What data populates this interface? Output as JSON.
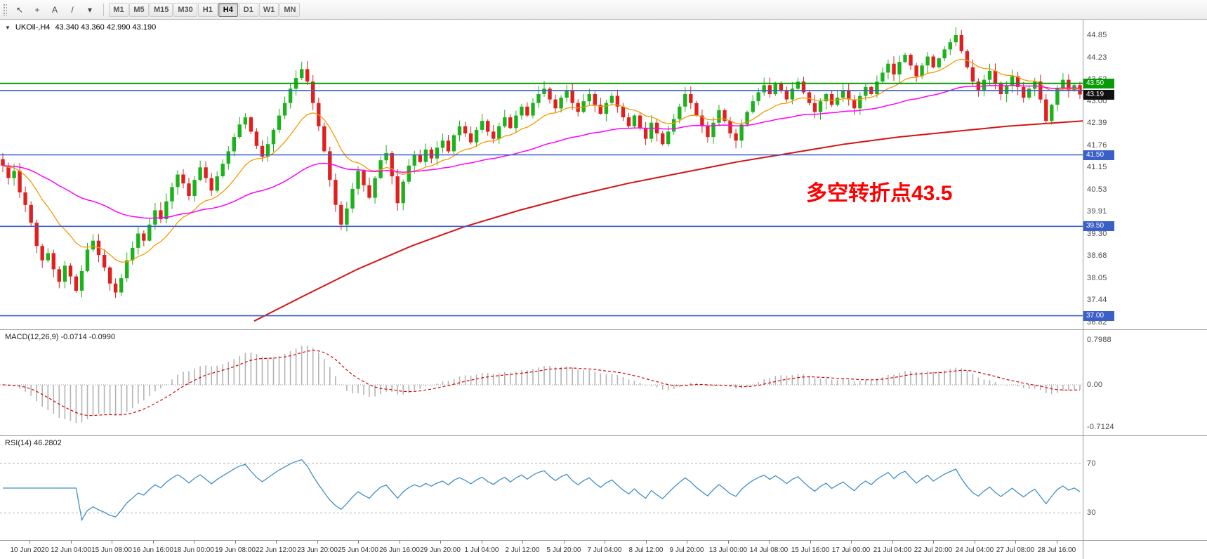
{
  "theme": {
    "up_color": "#1cb21c",
    "down_color": "#e02020",
    "ma_fast_color": "#f59a00",
    "ma_mid_color": "#ff00ff",
    "ma_long_color": "#d41414",
    "macd_hist_color": "#b4b4b4",
    "macd_signal_color": "#d40000",
    "rsi_color": "#3f8ec6",
    "annotation_color": "#ff0000",
    "badge_green": "#089b08",
    "badge_black": "#111111",
    "badge_blue": "#3a5fc8"
  },
  "toolbar": {
    "tools": [
      {
        "name": "pointer",
        "glyph": "↖"
      },
      {
        "name": "crosshair",
        "glyph": "+"
      },
      {
        "name": "text-label",
        "glyph": "A"
      },
      {
        "name": "trendline",
        "glyph": "/"
      },
      {
        "name": "draw-tools-dropdown",
        "glyph": "▾"
      }
    ],
    "timeframes": [
      "M1",
      "M5",
      "M15",
      "M30",
      "H1",
      "H4",
      "D1",
      "W1",
      "MN"
    ],
    "active_timeframe": "H4"
  },
  "chart": {
    "collapse_icon": "▼",
    "title": "UKOil-,H4",
    "ohlc_values": "43.340 43.360 42.990 43.190",
    "annotation": "多空转折点43.5",
    "price_labels": [
      44.85,
      44.23,
      43.62,
      43.0,
      42.39,
      41.76,
      41.15,
      40.53,
      39.91,
      39.3,
      38.68,
      38.05,
      37.44,
      36.82
    ],
    "badges": [
      {
        "text": "43.50",
        "price": 43.5,
        "bg": "#089b08"
      },
      {
        "text": "43.19",
        "price": 43.19,
        "bg": "#111111"
      },
      {
        "text": "41.50",
        "price": 41.5,
        "bg": "#3a5fc8"
      },
      {
        "text": "39.50",
        "price": 39.5,
        "bg": "#3a5fc8"
      },
      {
        "text": "37.00",
        "price": 37.0,
        "bg": "#3a5fc8"
      }
    ],
    "hlines": [
      {
        "price": 43.5,
        "color": "#089b08",
        "width": 2
      },
      {
        "price": 43.3,
        "color": "#3a5fc8",
        "width": 1.6
      },
      {
        "price": 41.5,
        "color": "#3a5fc8",
        "width": 1.6
      },
      {
        "price": 39.5,
        "color": "#3a5fc8",
        "width": 1.6
      },
      {
        "price": 37.0,
        "color": "#3a5fc8",
        "width": 1.6
      }
    ]
  },
  "chart_data": {
    "type": "candlestick",
    "symbol": "UKOil-",
    "timeframe": "H4",
    "open": 43.34,
    "high": 43.36,
    "low": 42.99,
    "close": 43.19,
    "y_axis": {
      "max": 44.85,
      "min": 36.82
    },
    "closes": [
      41.2,
      40.85,
      41.05,
      40.45,
      40.1,
      39.6,
      38.95,
      38.55,
      38.75,
      38.3,
      37.95,
      38.4,
      38.1,
      37.7,
      38.25,
      38.85,
      39.1,
      38.7,
      38.35,
      37.9,
      37.65,
      38.05,
      38.55,
      38.9,
      39.3,
      39.1,
      39.55,
      39.95,
      39.7,
      40.2,
      40.6,
      40.95,
      40.7,
      40.35,
      40.8,
      41.15,
      40.85,
      40.5,
      40.9,
      41.25,
      41.6,
      42.0,
      42.35,
      42.55,
      42.15,
      41.75,
      41.45,
      41.8,
      42.2,
      42.6,
      42.95,
      43.35,
      43.65,
      43.9,
      43.55,
      42.95,
      42.3,
      41.6,
      40.8,
      40.1,
      39.55,
      40.0,
      40.55,
      41.05,
      40.65,
      40.3,
      40.85,
      41.35,
      41.55,
      40.9,
      40.15,
      40.75,
      41.2,
      41.5,
      41.3,
      41.65,
      41.4,
      41.7,
      41.9,
      41.6,
      42.05,
      42.3,
      42.1,
      41.85,
      42.2,
      42.45,
      42.15,
      41.95,
      42.3,
      42.55,
      42.25,
      42.6,
      42.85,
      42.6,
      42.95,
      43.2,
      43.35,
      43.05,
      42.8,
      43.1,
      43.3,
      42.95,
      42.7,
      43.0,
      43.2,
      42.9,
      42.65,
      42.95,
      43.15,
      42.85,
      42.55,
      42.3,
      42.6,
      42.25,
      41.95,
      42.4,
      42.1,
      41.8,
      42.15,
      42.5,
      42.85,
      43.2,
      42.95,
      42.6,
      42.3,
      42.0,
      42.4,
      42.75,
      42.45,
      42.1,
      41.9,
      42.35,
      42.7,
      43.0,
      43.25,
      43.45,
      43.2,
      43.5,
      43.3,
      43.05,
      43.35,
      43.55,
      43.25,
      42.95,
      42.7,
      43.0,
      43.2,
      42.9,
      43.1,
      43.3,
      43.05,
      42.8,
      43.15,
      43.4,
      43.2,
      43.55,
      43.8,
      44.05,
      43.75,
      44.1,
      44.3,
      44.0,
      43.7,
      44.0,
      44.25,
      43.95,
      44.2,
      44.45,
      44.65,
      44.85,
      44.4,
      43.95,
      43.55,
      43.3,
      43.6,
      43.85,
      43.5,
      43.2,
      43.45,
      43.7,
      43.4,
      43.1,
      43.35,
      43.55,
      43.05,
      42.45,
      42.9,
      43.35,
      43.6,
      43.3,
      43.45,
      43.19
    ],
    "long_ma_points": [
      [
        0.235,
        36.85
      ],
      [
        0.28,
        37.55
      ],
      [
        0.33,
        38.3
      ],
      [
        0.38,
        38.95
      ],
      [
        0.43,
        39.5
      ],
      [
        0.48,
        39.95
      ],
      [
        0.53,
        40.35
      ],
      [
        0.58,
        40.7
      ],
      [
        0.63,
        41.0
      ],
      [
        0.68,
        41.3
      ],
      [
        0.73,
        41.55
      ],
      [
        0.78,
        41.8
      ],
      [
        0.83,
        42.0
      ],
      [
        0.88,
        42.15
      ],
      [
        0.93,
        42.3
      ],
      [
        1.0,
        42.45
      ]
    ],
    "time_labels": [
      "10 Jun 2020",
      "12 Jun 04:00",
      "15 Jun 08:00",
      "16 Jun 16:00",
      "18 Jun 00:00",
      "19 Jun 08:00",
      "22 Jun 12:00",
      "23 Jun 20:00",
      "25 Jun 04:00",
      "26 Jun 16:00",
      "29 Jun 20:00",
      "1 Jul 04:00",
      "2 Jul 12:00",
      "5 Jul 20:00",
      "7 Jul 04:00",
      "8 Jul 12:00",
      "9 Jul 20:00",
      "13 Jul 00:00",
      "14 Jul 08:00",
      "15 Jul 16:00",
      "17 Jul 00:00",
      "21 Jul 04:00",
      "22 Jul 20:00",
      "24 Jul 04:00",
      "27 Jul 08:00",
      "28 Jul 16:00"
    ]
  },
  "macd": {
    "label_full": "MACD(12,26,9) -0.0714 -0.0990",
    "name": "MACD",
    "params": "12,26,9",
    "main_value": "-0.0714",
    "signal_value": "-0.0990",
    "scale_labels": [
      "0.7988",
      "0.00",
      "-0.7124"
    ]
  },
  "rsi": {
    "label_full": "RSI(14) 46.2802",
    "name": "RSI",
    "params": "14",
    "value": "46.2802",
    "levels": [
      "70",
      "30"
    ]
  }
}
